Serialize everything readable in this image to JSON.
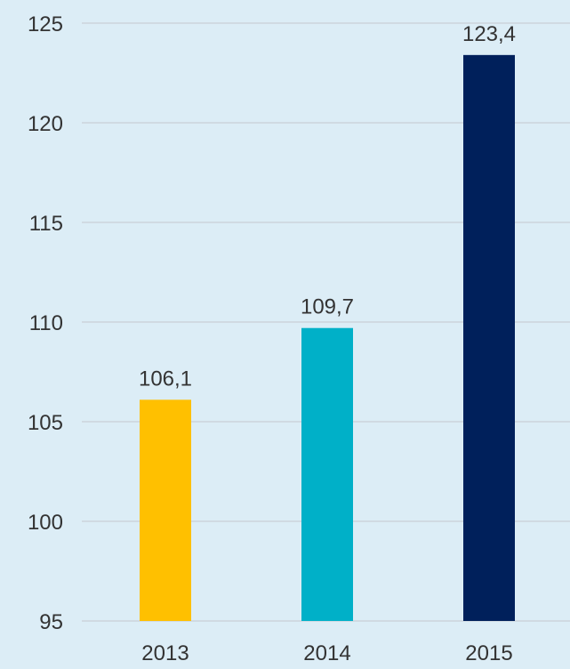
{
  "chart_data": {
    "type": "bar",
    "title": "",
    "xlabel": "",
    "ylabel": "",
    "categories": [
      "2013",
      "2014",
      "2015"
    ],
    "values": [
      106.1,
      109.7,
      123.4
    ],
    "value_labels": [
      "106,1",
      "109,7",
      "123,4"
    ],
    "bar_colors": [
      "#ffc000",
      "#00b0c8",
      "#00205b"
    ],
    "ylim": [
      95,
      125
    ],
    "yticks": [
      95,
      100,
      105,
      110,
      115,
      120,
      125
    ],
    "grid": true,
    "legend": "none"
  }
}
